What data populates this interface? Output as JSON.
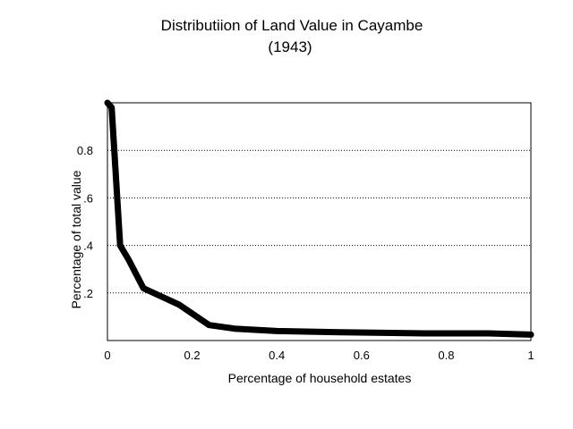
{
  "chart_data": {
    "type": "line",
    "title": "Distributiion of Land Value in Cayambe",
    "subtitle": "(1943)",
    "xlabel": "Percentage of household estates",
    "ylabel": "Percentage of total value",
    "xlim": [
      0,
      1
    ],
    "ylim": [
      0,
      1
    ],
    "x_ticks": [
      0,
      0.2,
      0.4,
      0.6,
      0.8,
      1
    ],
    "x_tick_labels": [
      "0",
      "0.2",
      "0.4",
      "0.6",
      "0.8",
      "1"
    ],
    "y_ticks": [
      0.2,
      0.4,
      0.6,
      0.8
    ],
    "y_tick_labels": [
      ".2",
      ".4",
      ".6",
      "0.8"
    ],
    "grid": "horizontal dotted",
    "legend": "none",
    "series": [
      {
        "color": "#000000",
        "x": [
          0,
          0.01,
          0.03,
          0.05,
          0.085,
          0.17,
          0.24,
          0.3,
          0.4,
          0.55,
          0.75,
          0.9,
          1.0
        ],
        "y": [
          1.0,
          0.98,
          0.4,
          0.34,
          0.22,
          0.15,
          0.065,
          0.05,
          0.04,
          0.035,
          0.03,
          0.03,
          0.025
        ]
      }
    ]
  }
}
